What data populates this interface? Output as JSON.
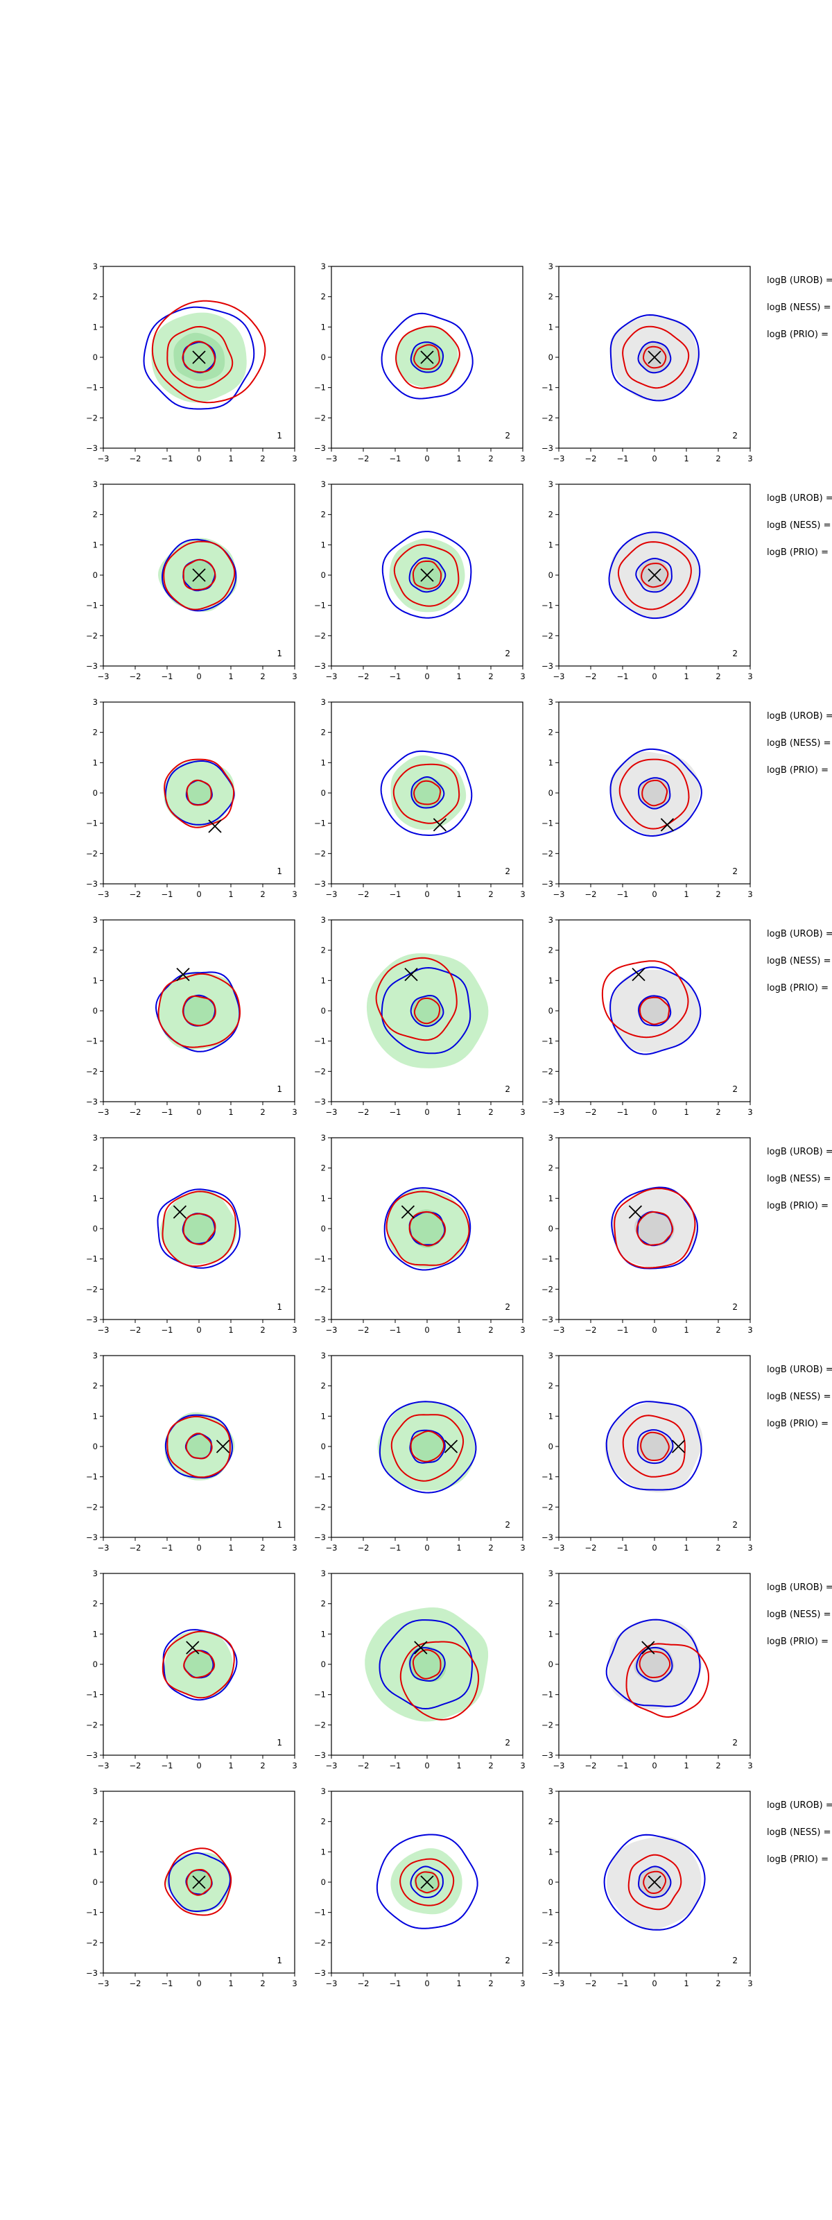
{
  "figure": {
    "row_labels": [
      "logB (UROB) =",
      "logB (NESS) =",
      "logB (PRIO) ="
    ]
  },
  "chart_data": {
    "type": "contour",
    "title": "",
    "xlabel": "",
    "ylabel": "",
    "xlim": [
      -3,
      3
    ],
    "ylim": [
      -3,
      3
    ],
    "xticks": [
      -3,
      -2,
      -1,
      0,
      1,
      2,
      3
    ],
    "yticks": [
      -3,
      -2,
      -1,
      0,
      1,
      2,
      3
    ],
    "grid": false,
    "colors": {
      "blue_contour": "#0000dd",
      "red_contour": "#e00000",
      "green_fill": "#c8f0c8",
      "gray_fill": "#e8e8e8",
      "marker": "#000000"
    },
    "panels": [
      {
        "row": 0,
        "col": 0,
        "label": "1",
        "marker": [
          0,
          0
        ],
        "fill": "green",
        "fill_r": [
          1.5,
          0.8
        ],
        "blue": [
          {
            "cx": 0,
            "cy": 0,
            "r": 1.7
          },
          {
            "cx": 0,
            "cy": 0,
            "r": 0.5
          }
        ],
        "red": [
          {
            "cx": 0.3,
            "cy": 0.2,
            "r": 1.7
          },
          {
            "cx": 0,
            "cy": 0,
            "r": 1.0
          },
          {
            "cx": 0,
            "cy": 0,
            "r": 0.5
          }
        ]
      },
      {
        "row": 0,
        "col": 1,
        "label": "2",
        "marker": [
          0,
          0
        ],
        "fill": "green",
        "fill_r": [
          1.0,
          0.5
        ],
        "blue": [
          {
            "cx": 0,
            "cy": 0,
            "r": 1.4
          },
          {
            "cx": 0,
            "cy": 0,
            "r": 0.5
          }
        ],
        "red": [
          {
            "cx": 0,
            "cy": 0,
            "r": 1.0
          },
          {
            "cx": 0,
            "cy": 0,
            "r": 0.4
          }
        ]
      },
      {
        "row": 0,
        "col": 2,
        "label": "2",
        "marker": [
          0,
          0
        ],
        "fill": "gray",
        "fill_r": [
          1.4,
          0.5
        ],
        "blue": [
          {
            "cx": 0,
            "cy": 0,
            "r": 1.4
          },
          {
            "cx": 0,
            "cy": 0,
            "r": 0.5
          }
        ],
        "red": [
          {
            "cx": 0,
            "cy": 0,
            "r": 1.0
          },
          {
            "cx": 0,
            "cy": 0,
            "r": 0.35
          }
        ]
      },
      {
        "row": 1,
        "col": 0,
        "label": "1",
        "marker": [
          0,
          0
        ],
        "fill": "green",
        "fill_r": [
          1.2,
          0.5
        ],
        "blue": [
          {
            "cx": 0,
            "cy": 0,
            "r": 1.15
          },
          {
            "cx": 0,
            "cy": 0,
            "r": 0.5
          }
        ],
        "red": [
          {
            "cx": 0,
            "cy": 0,
            "r": 1.1
          },
          {
            "cx": 0,
            "cy": 0,
            "r": 0.5
          }
        ]
      },
      {
        "row": 1,
        "col": 1,
        "label": "2",
        "marker": [
          0,
          0
        ],
        "fill": "green",
        "fill_r": [
          1.2,
          0.5
        ],
        "blue": [
          {
            "cx": 0,
            "cy": 0,
            "r": 1.4
          },
          {
            "cx": 0,
            "cy": 0,
            "r": 0.55
          }
        ],
        "red": [
          {
            "cx": 0,
            "cy": 0,
            "r": 1.0
          },
          {
            "cx": 0,
            "cy": 0,
            "r": 0.45
          }
        ]
      },
      {
        "row": 1,
        "col": 2,
        "label": "2",
        "marker": [
          0,
          0
        ],
        "fill": "gray",
        "fill_r": [
          1.4,
          0.5
        ],
        "blue": [
          {
            "cx": 0,
            "cy": 0,
            "r": 1.4
          },
          {
            "cx": 0,
            "cy": 0,
            "r": 0.55
          }
        ],
        "red": [
          {
            "cx": 0,
            "cy": 0,
            "r": 1.1
          },
          {
            "cx": 0,
            "cy": 0,
            "r": 0.4
          }
        ]
      },
      {
        "row": 2,
        "col": 0,
        "label": "1",
        "marker": [
          0.5,
          -1.1
        ],
        "fill": "green",
        "fill_r": [
          1.1,
          0.4
        ],
        "blue": [
          {
            "cx": 0,
            "cy": 0,
            "r": 1.05
          },
          {
            "cx": 0,
            "cy": 0,
            "r": 0.4
          }
        ],
        "red": [
          {
            "cx": 0,
            "cy": 0,
            "r": 1.1
          },
          {
            "cx": 0,
            "cy": 0,
            "r": 0.4
          }
        ]
      },
      {
        "row": 2,
        "col": 1,
        "label": "2",
        "marker": [
          0.4,
          -1.05
        ],
        "fill": "green",
        "fill_r": [
          1.2,
          0.5
        ],
        "blue": [
          {
            "cx": 0,
            "cy": 0,
            "r": 1.4
          },
          {
            "cx": 0,
            "cy": 0,
            "r": 0.5
          }
        ],
        "red": [
          {
            "cx": 0,
            "cy": 0,
            "r": 1.0
          },
          {
            "cx": 0,
            "cy": 0,
            "r": 0.4
          }
        ]
      },
      {
        "row": 2,
        "col": 2,
        "label": "2",
        "marker": [
          0.4,
          -1.05
        ],
        "fill": "gray",
        "fill_r": [
          1.4,
          0.5
        ],
        "blue": [
          {
            "cx": 0,
            "cy": 0,
            "r": 1.4
          },
          {
            "cx": 0,
            "cy": 0,
            "r": 0.5
          }
        ],
        "red": [
          {
            "cx": 0,
            "cy": 0,
            "r": 1.1
          },
          {
            "cx": 0,
            "cy": 0,
            "r": 0.4
          }
        ]
      },
      {
        "row": 3,
        "col": 0,
        "label": "1",
        "marker": [
          -0.5,
          1.2
        ],
        "fill": "green",
        "fill_r": [
          1.3,
          0.5
        ],
        "blue": [
          {
            "cx": 0,
            "cy": 0,
            "r": 1.3
          },
          {
            "cx": 0,
            "cy": 0,
            "r": 0.5
          }
        ],
        "red": [
          {
            "cx": 0,
            "cy": 0,
            "r": 1.25
          },
          {
            "cx": 0,
            "cy": 0,
            "r": 0.5
          }
        ]
      },
      {
        "row": 3,
        "col": 1,
        "label": "2",
        "marker": [
          -0.5,
          1.2
        ],
        "fill": "green",
        "fill_r": [
          1.9,
          0.5
        ],
        "blue": [
          {
            "cx": 0,
            "cy": 0,
            "r": 1.4
          },
          {
            "cx": 0,
            "cy": 0,
            "r": 0.5
          }
        ],
        "red": [
          {
            "cx": -0.3,
            "cy": 0.4,
            "r": 1.3
          },
          {
            "cx": 0,
            "cy": 0,
            "r": 0.4
          }
        ]
      },
      {
        "row": 3,
        "col": 2,
        "label": "2",
        "marker": [
          -0.5,
          1.2
        ],
        "fill": "gray",
        "fill_r": [
          1.4,
          0.5
        ],
        "blue": [
          {
            "cx": 0,
            "cy": 0,
            "r": 1.4
          },
          {
            "cx": 0,
            "cy": 0,
            "r": 0.5
          }
        ],
        "red": [
          {
            "cx": -0.3,
            "cy": 0.4,
            "r": 1.3
          },
          {
            "cx": 0,
            "cy": 0,
            "r": 0.45
          }
        ]
      },
      {
        "row": 4,
        "col": 0,
        "label": "1",
        "marker": [
          -0.6,
          0.55
        ],
        "fill": "green",
        "fill_r": [
          1.2,
          0.5
        ],
        "blue": [
          {
            "cx": 0,
            "cy": 0,
            "r": 1.3
          },
          {
            "cx": 0,
            "cy": 0,
            "r": 0.5
          }
        ],
        "red": [
          {
            "cx": 0,
            "cy": 0,
            "r": 1.2
          },
          {
            "cx": 0,
            "cy": 0,
            "r": 0.5
          }
        ]
      },
      {
        "row": 4,
        "col": 1,
        "label": "2",
        "marker": [
          -0.6,
          0.55
        ],
        "fill": "green",
        "fill_r": [
          1.3,
          0.6
        ],
        "blue": [
          {
            "cx": 0,
            "cy": 0,
            "r": 1.35
          },
          {
            "cx": 0,
            "cy": 0,
            "r": 0.55
          }
        ],
        "red": [
          {
            "cx": 0,
            "cy": 0,
            "r": 1.25
          },
          {
            "cx": 0,
            "cy": 0,
            "r": 0.55
          }
        ]
      },
      {
        "row": 4,
        "col": 2,
        "label": "2",
        "marker": [
          -0.6,
          0.55
        ],
        "fill": "gray",
        "fill_r": [
          1.3,
          0.6
        ],
        "blue": [
          {
            "cx": 0,
            "cy": 0,
            "r": 1.35
          },
          {
            "cx": 0,
            "cy": 0,
            "r": 0.55
          }
        ],
        "red": [
          {
            "cx": 0,
            "cy": 0,
            "r": 1.3
          },
          {
            "cx": 0,
            "cy": 0,
            "r": 0.55
          }
        ]
      },
      {
        "row": 5,
        "col": 0,
        "label": "1",
        "marker": [
          0.75,
          0
        ],
        "fill": "green",
        "fill_r": [
          1.1,
          0.4
        ],
        "blue": [
          {
            "cx": 0,
            "cy": 0,
            "r": 1.05
          },
          {
            "cx": 0,
            "cy": 0,
            "r": 0.4
          }
        ],
        "red": [
          {
            "cx": 0,
            "cy": 0,
            "r": 1.0
          },
          {
            "cx": 0,
            "cy": 0,
            "r": 0.4
          }
        ]
      },
      {
        "row": 5,
        "col": 1,
        "label": "2",
        "marker": [
          0.75,
          0
        ],
        "fill": "green",
        "fill_r": [
          1.5,
          0.5
        ],
        "blue": [
          {
            "cx": 0,
            "cy": 0,
            "r": 1.5
          },
          {
            "cx": 0,
            "cy": 0,
            "r": 0.55
          }
        ],
        "red": [
          {
            "cx": 0,
            "cy": 0,
            "r": 1.1
          },
          {
            "cx": 0,
            "cy": 0,
            "r": 0.5
          }
        ]
      },
      {
        "row": 5,
        "col": 2,
        "label": "2",
        "marker": [
          0.75,
          0
        ],
        "fill": "gray",
        "fill_r": [
          1.5,
          0.5
        ],
        "blue": [
          {
            "cx": 0,
            "cy": 0,
            "r": 1.5
          },
          {
            "cx": 0,
            "cy": 0,
            "r": 0.55
          }
        ],
        "red": [
          {
            "cx": 0,
            "cy": 0,
            "r": 1.0
          },
          {
            "cx": 0,
            "cy": 0,
            "r": 0.45
          }
        ]
      },
      {
        "row": 6,
        "col": 0,
        "label": "1",
        "marker": [
          -0.2,
          0.55
        ],
        "fill": "green",
        "fill_r": [
          1.1,
          0.45
        ],
        "blue": [
          {
            "cx": 0,
            "cy": 0,
            "r": 1.15
          },
          {
            "cx": 0,
            "cy": 0,
            "r": 0.45
          }
        ],
        "red": [
          {
            "cx": 0,
            "cy": 0,
            "r": 1.1
          },
          {
            "cx": 0,
            "cy": 0,
            "r": 0.45
          }
        ]
      },
      {
        "row": 6,
        "col": 1,
        "label": "2",
        "marker": [
          -0.2,
          0.55
        ],
        "fill": "green",
        "fill_r": [
          1.9,
          0.6
        ],
        "blue": [
          {
            "cx": 0,
            "cy": 0,
            "r": 1.45
          },
          {
            "cx": 0,
            "cy": 0,
            "r": 0.55
          }
        ],
        "red": [
          {
            "cx": 0.4,
            "cy": -0.5,
            "r": 1.25
          },
          {
            "cx": 0,
            "cy": 0,
            "r": 0.45
          }
        ]
      },
      {
        "row": 6,
        "col": 2,
        "label": "2",
        "marker": [
          -0.2,
          0.55
        ],
        "fill": "gray",
        "fill_r": [
          1.5,
          0.6
        ],
        "blue": [
          {
            "cx": 0,
            "cy": 0,
            "r": 1.45
          },
          {
            "cx": 0,
            "cy": 0,
            "r": 0.55
          }
        ],
        "red": [
          {
            "cx": 0.4,
            "cy": -0.5,
            "r": 1.25
          },
          {
            "cx": 0,
            "cy": 0,
            "r": 0.45
          }
        ]
      },
      {
        "row": 7,
        "col": 0,
        "label": "1",
        "marker": [
          0,
          0
        ],
        "fill": "green",
        "fill_r": [
          1.0,
          0.4
        ],
        "blue": [
          {
            "cx": 0,
            "cy": 0,
            "r": 0.95
          },
          {
            "cx": 0,
            "cy": 0,
            "r": 0.4
          }
        ],
        "red": [
          {
            "cx": 0,
            "cy": 0,
            "r": 1.05
          },
          {
            "cx": 0,
            "cy": 0,
            "r": 0.4
          }
        ]
      },
      {
        "row": 7,
        "col": 1,
        "label": "2",
        "marker": [
          0,
          0
        ],
        "fill": "green",
        "fill_r": [
          1.1,
          0.4
        ],
        "blue": [
          {
            "cx": 0,
            "cy": 0,
            "r": 1.55
          },
          {
            "cx": 0,
            "cy": 0,
            "r": 0.5
          }
        ],
        "red": [
          {
            "cx": 0,
            "cy": 0,
            "r": 0.8
          },
          {
            "cx": 0,
            "cy": 0,
            "r": 0.35
          }
        ]
      },
      {
        "row": 7,
        "col": 2,
        "label": "2",
        "marker": [
          0,
          0
        ],
        "fill": "gray",
        "fill_r": [
          1.5,
          0.5
        ],
        "blue": [
          {
            "cx": 0,
            "cy": 0,
            "r": 1.55
          },
          {
            "cx": 0,
            "cy": 0,
            "r": 0.5
          }
        ],
        "red": [
          {
            "cx": 0,
            "cy": 0,
            "r": 0.85
          },
          {
            "cx": 0,
            "cy": 0,
            "r": 0.35
          }
        ]
      }
    ]
  }
}
